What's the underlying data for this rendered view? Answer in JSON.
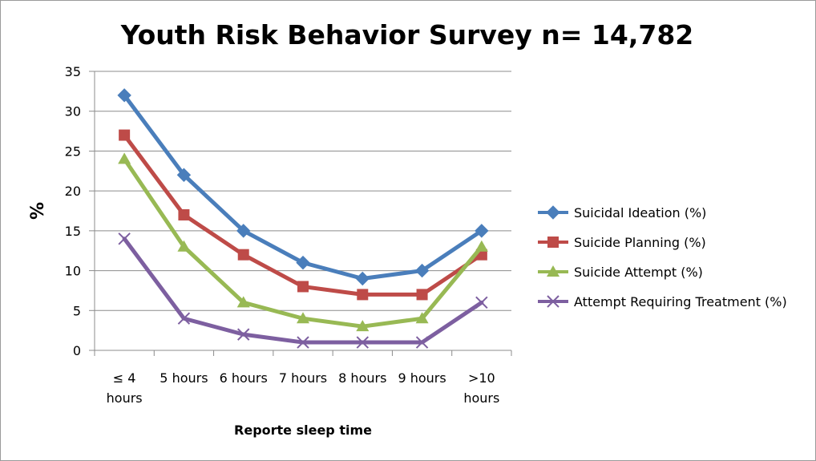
{
  "chart_data": {
    "type": "line",
    "title": "Youth Risk Behavior Survey n= 14,782",
    "xlabel": "Reporte sleep time",
    "ylabel": "%",
    "ylim": [
      0,
      35
    ],
    "yticks": [
      "0",
      "5",
      "10",
      "15",
      "20",
      "25",
      "30",
      "35"
    ],
    "categories": [
      [
        "≤ 4",
        "hours"
      ],
      [
        "5 hours"
      ],
      [
        "6 hours"
      ],
      [
        "7 hours"
      ],
      [
        "8 hours"
      ],
      [
        "9 hours"
      ],
      [
        ">10",
        "hours"
      ]
    ],
    "grid": true,
    "legend_position": "right",
    "series": [
      {
        "name": "Suicidal Ideation (%)",
        "values": [
          32,
          22,
          15,
          11,
          9,
          10,
          15
        ],
        "color": "#4a7ebb",
        "marker": "diamond"
      },
      {
        "name": "Suicide Planning (%)",
        "values": [
          27,
          17,
          12,
          8,
          7,
          7,
          12
        ],
        "color": "#be4b48",
        "marker": "square"
      },
      {
        "name": "Suicide Attempt (%)",
        "values": [
          24,
          13,
          6,
          4,
          3,
          4,
          13
        ],
        "color": "#98b954",
        "marker": "triangle"
      },
      {
        "name": "Attempt Requiring Treatment (%)",
        "values": [
          14,
          4,
          2,
          1,
          1,
          1,
          6
        ],
        "color": "#7d5fa0",
        "marker": "x"
      }
    ]
  }
}
